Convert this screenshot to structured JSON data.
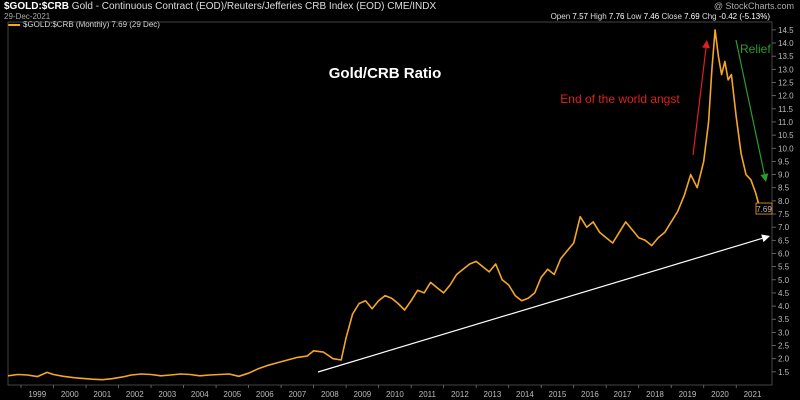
{
  "header": {
    "symbol": "$GOLD:$CRB",
    "description": "Gold - Continuous Contract (EOD)/Reuters/Jefferies CRB Index (EOD) CME/INDX",
    "watermark": "@ StockCharts.com",
    "date": "29-Dec-2021",
    "open_label": "Open",
    "open": "7.57",
    "high_label": "High",
    "high": "7.76",
    "low_label": "Low",
    "low": "7.46",
    "close_label": "Close",
    "close": "7.69",
    "chg_label": "Chg",
    "chg": "-0.42 (-5.13%)",
    "legend": "$GOLD:$CRB (Monthly) 7.69 (29 Dec)"
  },
  "colors": {
    "line": "#f5a623",
    "background": "#000000",
    "red_arrow": "#e0201c",
    "green_arrow": "#2c9c2c",
    "trendline": "#ffffff"
  },
  "chart_data": {
    "type": "line",
    "title": "Gold/CRB Ratio",
    "x_labels": [
      "1999",
      "2000",
      "2001",
      "2002",
      "2003",
      "2004",
      "2005",
      "2006",
      "2007",
      "2008",
      "2009",
      "2010",
      "2011",
      "2012",
      "2013",
      "2014",
      "2015",
      "2016",
      "2017",
      "2018",
      "2019",
      "2020",
      "2021"
    ],
    "xlim": [
      1998.6,
      2022.1
    ],
    "ylim": [
      1.0,
      14.8
    ],
    "y_ticks": [
      "1.5",
      "2.0",
      "2.5",
      "3.0",
      "3.5",
      "4.0",
      "4.5",
      "5.0",
      "5.5",
      "6.0",
      "6.5",
      "7.0",
      "7.5",
      "8.0",
      "8.5",
      "9.0",
      "9.5",
      "10.0",
      "10.5",
      "11.0",
      "11.5",
      "12.0",
      "12.5",
      "13.0",
      "13.5",
      "14.0",
      "14.5"
    ],
    "last_value_label": "7.69",
    "grid": false,
    "series": [
      {
        "name": "$GOLD:$CRB (Monthly)",
        "points": [
          [
            1998.6,
            1.35
          ],
          [
            1998.9,
            1.4
          ],
          [
            1999.2,
            1.38
          ],
          [
            1999.5,
            1.32
          ],
          [
            1999.8,
            1.48
          ],
          [
            2000.0,
            1.4
          ],
          [
            2000.3,
            1.33
          ],
          [
            2000.6,
            1.28
          ],
          [
            2000.9,
            1.25
          ],
          [
            2001.2,
            1.22
          ],
          [
            2001.5,
            1.2
          ],
          [
            2001.8,
            1.24
          ],
          [
            2002.1,
            1.3
          ],
          [
            2002.4,
            1.38
          ],
          [
            2002.7,
            1.42
          ],
          [
            2003.0,
            1.4
          ],
          [
            2003.3,
            1.35
          ],
          [
            2003.6,
            1.38
          ],
          [
            2003.9,
            1.42
          ],
          [
            2004.2,
            1.4
          ],
          [
            2004.5,
            1.35
          ],
          [
            2004.8,
            1.38
          ],
          [
            2005.1,
            1.4
          ],
          [
            2005.4,
            1.42
          ],
          [
            2005.7,
            1.33
          ],
          [
            2006.0,
            1.45
          ],
          [
            2006.3,
            1.62
          ],
          [
            2006.6,
            1.75
          ],
          [
            2006.9,
            1.85
          ],
          [
            2007.2,
            1.95
          ],
          [
            2007.5,
            2.05
          ],
          [
            2007.8,
            2.1
          ],
          [
            2008.0,
            2.3
          ],
          [
            2008.3,
            2.25
          ],
          [
            2008.6,
            2.0
          ],
          [
            2008.85,
            1.95
          ],
          [
            2009.0,
            2.8
          ],
          [
            2009.2,
            3.7
          ],
          [
            2009.4,
            4.1
          ],
          [
            2009.6,
            4.2
          ],
          [
            2009.8,
            3.9
          ],
          [
            2010.0,
            4.2
          ],
          [
            2010.2,
            4.4
          ],
          [
            2010.4,
            4.3
          ],
          [
            2010.6,
            4.1
          ],
          [
            2010.8,
            3.85
          ],
          [
            2011.0,
            4.2
          ],
          [
            2011.2,
            4.6
          ],
          [
            2011.4,
            4.5
          ],
          [
            2011.6,
            4.9
          ],
          [
            2011.8,
            4.7
          ],
          [
            2012.0,
            4.5
          ],
          [
            2012.2,
            4.8
          ],
          [
            2012.4,
            5.2
          ],
          [
            2012.6,
            5.4
          ],
          [
            2012.8,
            5.6
          ],
          [
            2013.0,
            5.7
          ],
          [
            2013.2,
            5.5
          ],
          [
            2013.4,
            5.3
          ],
          [
            2013.6,
            5.6
          ],
          [
            2013.8,
            5.0
          ],
          [
            2014.0,
            4.8
          ],
          [
            2014.2,
            4.4
          ],
          [
            2014.4,
            4.2
          ],
          [
            2014.6,
            4.3
          ],
          [
            2014.8,
            4.5
          ],
          [
            2015.0,
            5.1
          ],
          [
            2015.2,
            5.4
          ],
          [
            2015.4,
            5.2
          ],
          [
            2015.6,
            5.8
          ],
          [
            2015.8,
            6.1
          ],
          [
            2016.0,
            6.4
          ],
          [
            2016.2,
            7.4
          ],
          [
            2016.4,
            7.0
          ],
          [
            2016.6,
            7.2
          ],
          [
            2016.8,
            6.8
          ],
          [
            2017.0,
            6.6
          ],
          [
            2017.2,
            6.4
          ],
          [
            2017.4,
            6.8
          ],
          [
            2017.6,
            7.2
          ],
          [
            2017.8,
            6.9
          ],
          [
            2018.0,
            6.6
          ],
          [
            2018.2,
            6.5
          ],
          [
            2018.4,
            6.3
          ],
          [
            2018.6,
            6.6
          ],
          [
            2018.8,
            6.8
          ],
          [
            2019.0,
            7.2
          ],
          [
            2019.2,
            7.6
          ],
          [
            2019.4,
            8.2
          ],
          [
            2019.6,
            9.0
          ],
          [
            2019.8,
            8.5
          ],
          [
            2020.0,
            9.5
          ],
          [
            2020.15,
            11.0
          ],
          [
            2020.25,
            13.0
          ],
          [
            2020.35,
            14.5
          ],
          [
            2020.45,
            13.5
          ],
          [
            2020.55,
            12.8
          ],
          [
            2020.65,
            13.3
          ],
          [
            2020.75,
            12.6
          ],
          [
            2020.85,
            12.8
          ],
          [
            2021.0,
            11.2
          ],
          [
            2021.15,
            9.8
          ],
          [
            2021.3,
            9.0
          ],
          [
            2021.45,
            8.8
          ],
          [
            2021.6,
            8.3
          ],
          [
            2021.75,
            7.6
          ],
          [
            2021.9,
            7.9
          ],
          [
            2021.98,
            7.69
          ]
        ]
      }
    ],
    "annotations": [
      {
        "text": "End of the world angst",
        "color": "#e0201c"
      },
      {
        "text": "Relief",
        "color": "#2c9c2c"
      }
    ]
  }
}
